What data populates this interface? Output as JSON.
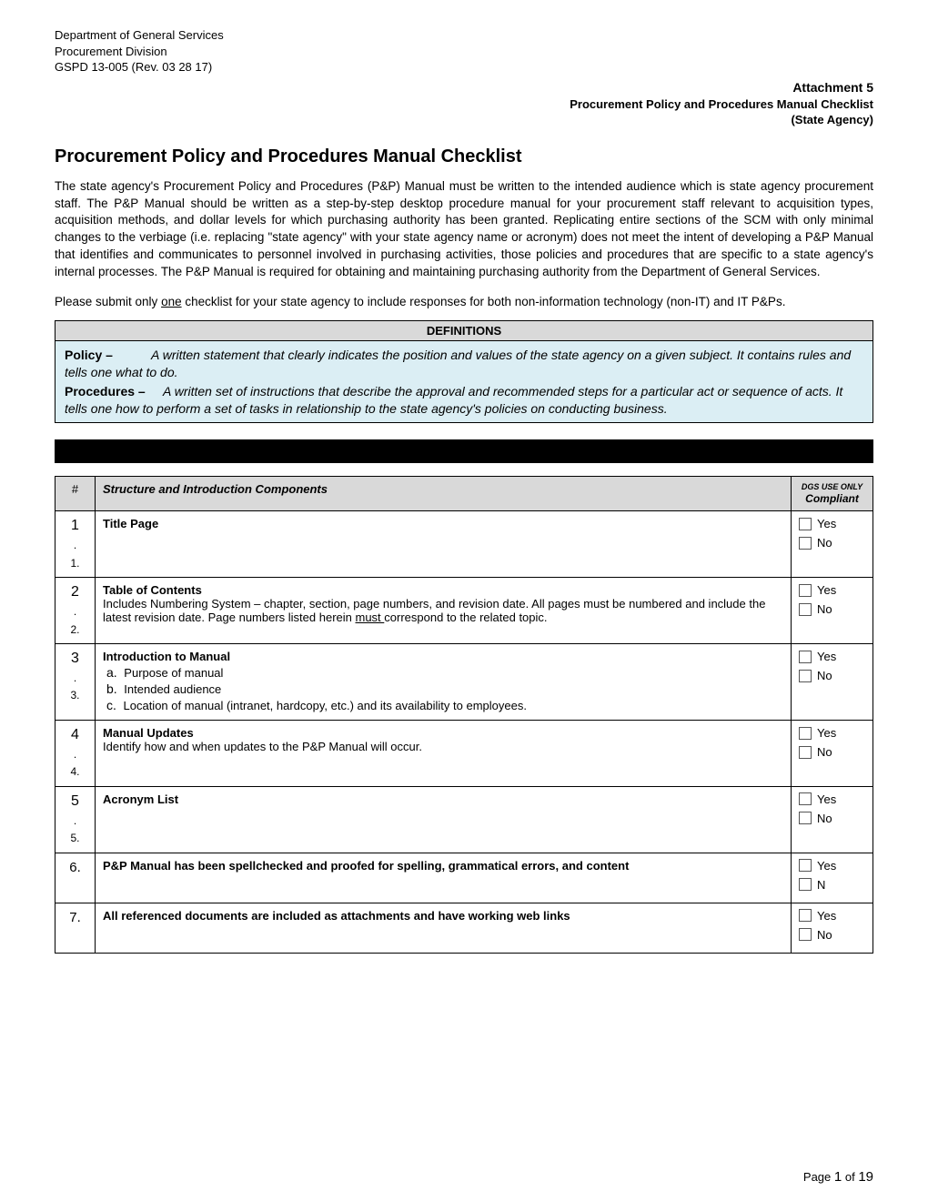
{
  "header": {
    "line1": "Department of General Services",
    "line2": "Procurement Division",
    "line3": "GSPD 13-005 (Rev. 03 28 17)",
    "attachment_title": "Attachment 5",
    "attachment_sub1": "Procurement Policy and Procedures Manual Checklist",
    "attachment_sub2": "(State Agency)"
  },
  "title": "Procurement Policy and Procedures Manual Checklist",
  "intro_para": "The state agency's Procurement Policy and Procedures (P&P) Manual must be written to the intended audience which is state agency procurement staff.  The P&P Manual should be written as a step-by-step desktop procedure manual for your procurement staff relevant to acquisition types, acquisition methods, and dollar levels for which purchasing authority has been granted.  Replicating entire sections of the SCM with only minimal changes to the verbiage (i.e. replacing \"state agency\" with your state agency name or acronym) does not meet the intent of developing a P&P Manual that identifies and communicates to personnel involved in purchasing activities, those policies and procedures that are specific to a state agency's internal processes.  The P&P Manual is required for obtaining and maintaining purchasing authority from the Department of General Services.",
  "intro_para2_pre": "Please submit only ",
  "intro_para2_underline": "one",
  "intro_para2_post": " checklist for your state agency to include responses for both non-information technology (non-IT) and IT P&Ps.",
  "definitions": {
    "header": "DEFINITIONS",
    "policy_term": "Policy –",
    "policy_text": "A written statement that clearly indicates the position and values of the state agency on a given subject.  It contains rules and tells one what to do.",
    "procedures_term": "Procedures –",
    "procedures_text": "A written set of instructions that describe the approval and recommended steps for a particular act or sequence of acts.  It tells one how to perform a set of tasks in relationship to the state agency's policies on conducting business."
  },
  "table": {
    "head_num": "#",
    "head_main": "Structure and Introduction Components",
    "head_dgs_line1": "DGS USE ONLY",
    "head_dgs_line2": "Compliant",
    "yes_label": "Yes",
    "no_label": "No",
    "n_label": "N",
    "rows": [
      {
        "num": "1.\n1.",
        "title": "Title Page",
        "body": ""
      },
      {
        "num": "2.\n2.",
        "title": "Table of Contents",
        "body_pre": "Includes Numbering System – chapter, section, page numbers, and revision date. All pages must be numbered and include the latest revision date. Page numbers listed herein ",
        "body_u": "must ",
        "body_post": "correspond to the related topic."
      },
      {
        "num": "3.\n3.",
        "title": "Introduction to Manual",
        "sub": [
          {
            "letter": "a.",
            "text": "Purpose of manual"
          },
          {
            "letter": "b.",
            "text": "Intended audience"
          },
          {
            "letter": "c.",
            "text": "Location of manual (intranet, hardcopy, etc.) and its availability to employees."
          }
        ]
      },
      {
        "num": "4.\n4.",
        "title": "Manual Updates",
        "body": "Identify how and when updates to the P&P Manual will occur."
      },
      {
        "num": "5.\n5.",
        "title": "Acronym List",
        "body": ""
      },
      {
        "num": "6.",
        "title": "P&P Manual has been spellchecked and proofed for spelling, grammatical errors, and content",
        "body": "",
        "no_overrides_n": true
      },
      {
        "num": "7.",
        "title": "All referenced documents are included as attachments and have working web links",
        "body": ""
      }
    ]
  },
  "footer": {
    "prefix": "Page ",
    "current": "1",
    "of": " of ",
    "total": "19"
  }
}
